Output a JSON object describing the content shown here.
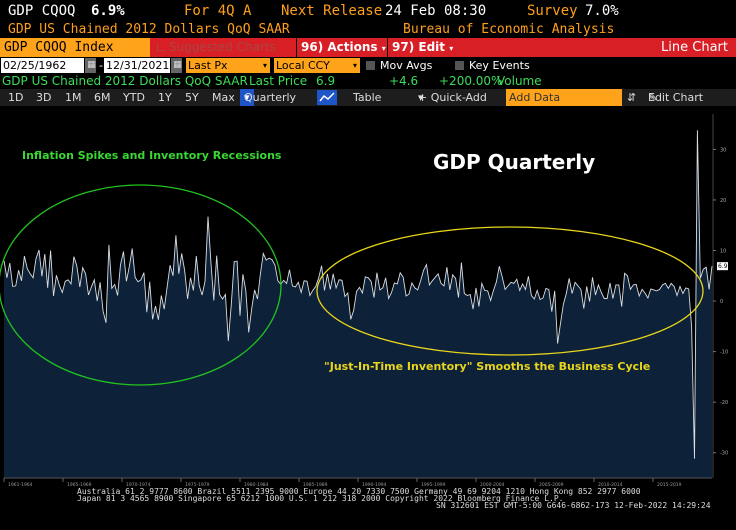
{
  "quote": {
    "ticker": "GDP CQOQ",
    "value": "6.9%",
    "period_label": "For 4Q A",
    "next_release_label": "Next Release",
    "next_release": "24 Feb 08:30",
    "survey_label": "Survey",
    "survey": "7.0%",
    "description": "GDP US Chained 2012 Dollars QoQ SAAR",
    "source": "Bureau of Economic Analysis"
  },
  "command_bar": {
    "ticker_box": "GDP CQOQ Index",
    "suggested": "Suggested Charts",
    "actions_num": "96)",
    "actions": "Actions",
    "edit_num": "97)",
    "edit": "Edit",
    "chart_type": "Line Chart"
  },
  "range": {
    "start": "02/25/1962",
    "end": "12/31/2021",
    "field": "Last Px",
    "currency": "Local CCY",
    "mov_avgs": "Mov Avgs",
    "key_events": "Key Events"
  },
  "series_info": {
    "name": "GDP US Chained 2012 Dollars QoQ SAAR",
    "last_price_label": "Last Price",
    "last_price": "6.9",
    "change": "+4.6",
    "pct_change": "+200.00%",
    "volume_label": "Volume"
  },
  "toolbar": {
    "periods": [
      "1D",
      "3D",
      "1M",
      "6M",
      "YTD",
      "1Y",
      "5Y",
      "Max"
    ],
    "frequency": "Quarterly",
    "table": "Table",
    "quick_add": "+ Quick-Add",
    "add_data_placeholder": "Add Data",
    "edit_chart": "Edit Chart"
  },
  "annotations": {
    "title": "GDP Quarterly",
    "left": "Inflation Spikes and Inventory Recessions",
    "right": "\"Just-In-Time Inventory\" Smooths the Business Cycle"
  },
  "chart_data": {
    "type": "area",
    "title": "GDP Quarterly",
    "xlabel": "",
    "ylabel": "",
    "ylim": [
      -35,
      37
    ],
    "yticks": [
      30,
      20,
      10,
      0,
      -10,
      -20,
      -30
    ],
    "xticks": [
      "1961-1964",
      "1965-1969",
      "1970-1974",
      "1975-1979",
      "1980-1984",
      "1985-1989",
      "1990-1994",
      "1995-1999",
      "2000-2004",
      "2005-2009",
      "2010-2014",
      "2015-2019"
    ],
    "x_range": [
      "1962",
      "2021"
    ],
    "last_value_label": "6.9",
    "colors": {
      "fill": "#0d2238",
      "line": "#d8dde3",
      "green_ellipse": "#22c21f",
      "yellow_ellipse": "#e8d51c"
    },
    "grid": false,
    "values": [
      8.0,
      4.6,
      7.5,
      2.9,
      3.0,
      6.1,
      4.0,
      8.9,
      6.4,
      5.4,
      4.6,
      8.4,
      10.1,
      4.9,
      9.3,
      2.6,
      10.0,
      1.0,
      5.1,
      3.1,
      1.7,
      3.9,
      4.2,
      3.4,
      8.8,
      7.0,
      2.8,
      6.6,
      5.4,
      1.2,
      2.8,
      4.2,
      0.0,
      3.7,
      -2.0,
      -4.3,
      11.1,
      2.5,
      3.3,
      1.1,
      7.2,
      9.8,
      3.9,
      6.8,
      10.4,
      4.7,
      3.8,
      4.2,
      5.6,
      -2.2,
      3.8,
      -3.6,
      -1.0,
      -3.7,
      1.1,
      -1.6,
      2.9,
      7.1,
      5.0,
      13.0,
      5.4,
      9.4,
      6.1,
      0.4,
      4.6,
      2.1,
      8.9,
      3.1,
      1.2,
      3.9,
      16.7,
      7.7,
      0.1,
      9.0,
      1.3,
      0.4,
      1.3,
      -7.9,
      -0.6,
      7.8,
      7.9,
      -2.9,
      5.3,
      2.1,
      -6.2,
      -1.5,
      2.2,
      0.4,
      5.4,
      9.4,
      8.1,
      8.5,
      8.2,
      7.1,
      4.0,
      3.3,
      4.1,
      3.5,
      6.2,
      3.0,
      2.8,
      3.7,
      1.7,
      4.0,
      3.9,
      1.1,
      2.1,
      2.9,
      4.6,
      7.0,
      2.1,
      5.4,
      2.3,
      5.4,
      2.6,
      4.2,
      4.1,
      0.9,
      1.6,
      -3.6,
      -1.9,
      1.9,
      2.7,
      1.6,
      4.8,
      4.6,
      3.9,
      0.7,
      5.6,
      2.2,
      2.6,
      4.6,
      0.5,
      1.7,
      3.6,
      3.4,
      5.6,
      4.7,
      1.0,
      1.4,
      3.6,
      2.6,
      2.2,
      4.0,
      6.1,
      7.2,
      3.2,
      4.0,
      4.7,
      5.4,
      3.5,
      3.0,
      6.7,
      2.2,
      5.2,
      4.5,
      0.7,
      7.6,
      1.5,
      1.1,
      1.3,
      -1.6,
      2.6,
      -1.1,
      3.5,
      2.1,
      2.0,
      0.1,
      2.1,
      3.8,
      6.9,
      4.8,
      2.3,
      3.0,
      3.7,
      3.5,
      4.3,
      2.1,
      3.4,
      2.3,
      4.9,
      1.1,
      0.4,
      2.1,
      0.3,
      0.6,
      2.5,
      2.3,
      -2.1,
      2.0,
      -8.4,
      -4.4,
      -0.6,
      1.5,
      4.5,
      1.5,
      3.7,
      3.0,
      2.3,
      -1.5,
      2.9,
      -0.1,
      4.7,
      1.2,
      3.2,
      1.7,
      0.5,
      0.5,
      3.6,
      0.5,
      3.2,
      3.2,
      -1.1,
      5.5,
      5.0,
      2.3,
      3.2,
      3.3,
      1.0,
      2.3,
      1.6,
      0.6,
      2.4,
      2.2,
      2.0,
      2.3,
      3.2,
      3.5,
      2.5,
      3.5,
      2.9,
      1.1,
      2.9,
      1.5,
      2.6,
      2.4,
      -5.1,
      -31.2,
      33.8,
      4.5,
      6.3,
      6.7,
      2.3,
      6.9
    ]
  },
  "footer": {
    "line1": "Australia 61 2 9777 8600 Brazil 5511 2395 9000 Europe 44 20 7330 7500 Germany 49 69 9204 1210 Hong Kong 852 2977 6000",
    "line2": "Japan 81 3 4565 8900        Singapore 65 6212 1000        U.S. 1 212 318 2000        Copyright 2022 Bloomberg Finance L.P.",
    "line3": "SN 312601 EST  GMT-5:00 G646-6862-173 12-Feb-2022 14:29:24"
  }
}
